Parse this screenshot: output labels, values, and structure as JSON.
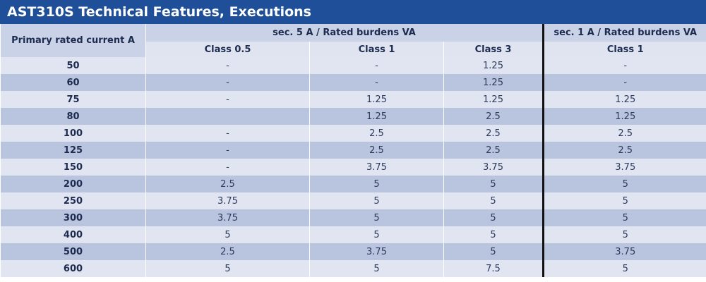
{
  "title": "AST310S Technical Features, Executions",
  "header": {
    "primary": "Primary rated current A",
    "group_sec5": "sec. 5 A / Rated burdens VA",
    "group_sec1": "sec. 1 A / Rated burdens VA",
    "sec5_class05": "Class 0.5",
    "sec5_class1": "Class 1",
    "sec5_class3": "Class 3",
    "sec1_class1": "Class 1"
  },
  "rows": [
    [
      "50",
      "-",
      "-",
      "1.25",
      "-"
    ],
    [
      "60",
      "-",
      "-",
      "1.25",
      "-"
    ],
    [
      "75",
      "-",
      "1.25",
      "1.25",
      "1.25"
    ],
    [
      "80",
      "",
      "1.25",
      "2.5",
      "1.25"
    ],
    [
      "100",
      "-",
      "2.5",
      "2.5",
      "2.5"
    ],
    [
      "125",
      "-",
      "2.5",
      "2.5",
      "2.5"
    ],
    [
      "150",
      "-",
      "3.75",
      "3.75",
      "3.75"
    ],
    [
      "200",
      "2.5",
      "5",
      "5",
      "5"
    ],
    [
      "250",
      "3.75",
      "5",
      "5",
      "5"
    ],
    [
      "300",
      "3.75",
      "5",
      "5",
      "5"
    ],
    [
      "400",
      "5",
      "5",
      "5",
      "5"
    ],
    [
      "500",
      "2.5",
      "3.75",
      "5",
      "3.75"
    ],
    [
      "600",
      "5",
      "5",
      "7.5",
      "5"
    ]
  ]
}
